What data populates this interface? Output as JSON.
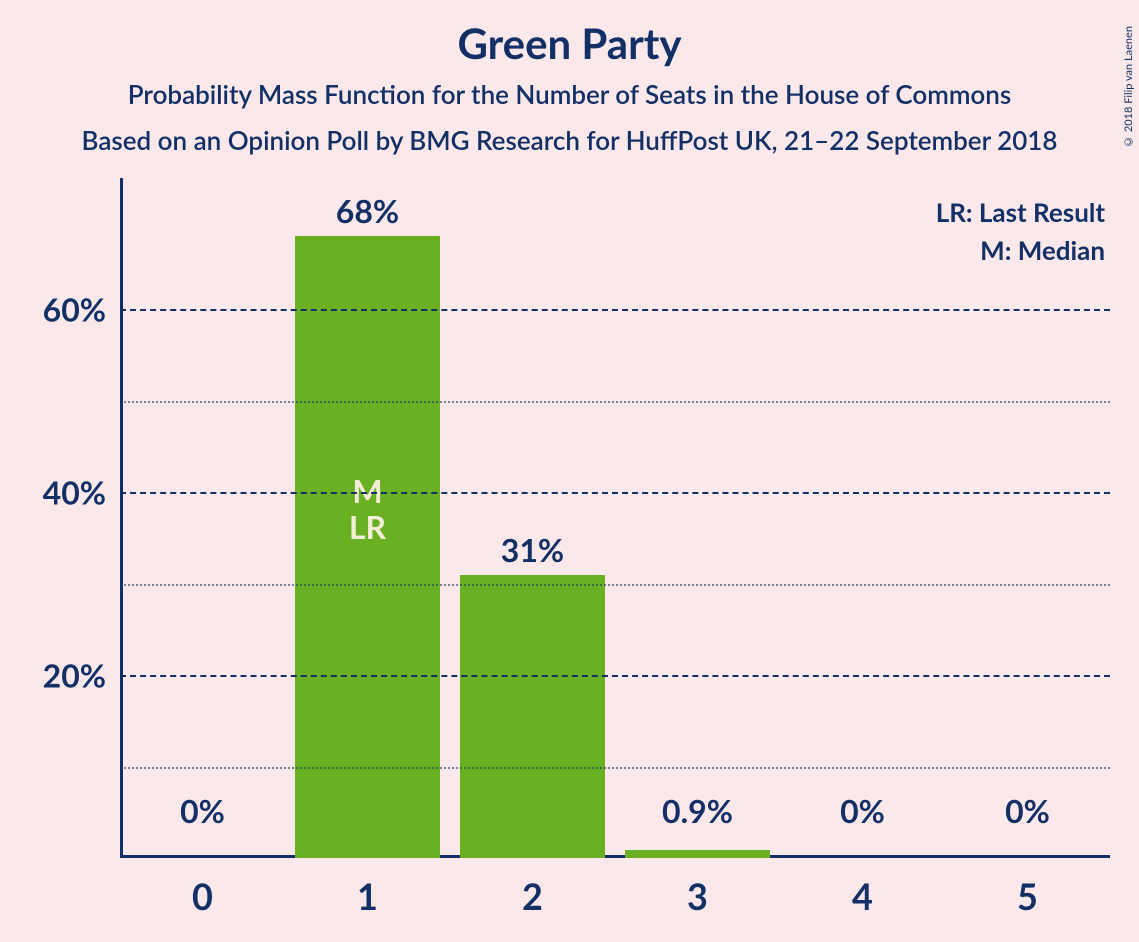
{
  "title": "Green Party",
  "subtitle1": "Probability Mass Function for the Number of Seats in the House of Commons",
  "subtitle2": "Based on an Opinion Poll by BMG Research for HuffPost UK, 21–22 September 2018",
  "legend": {
    "lr": "LR: Last Result",
    "m": "M: Median"
  },
  "copyright": "© 2018 Filip van Laenen",
  "colors": {
    "background": "#fae8ea",
    "text": "#123066",
    "bar": "#6ab023",
    "bar_text": "#f3edd8"
  },
  "chart": {
    "type": "bar",
    "categories": [
      "0",
      "1",
      "2",
      "3",
      "4",
      "5"
    ],
    "values": [
      0,
      68,
      31,
      0.9,
      0,
      0
    ],
    "value_labels": [
      "0%",
      "68%",
      "31%",
      "0.9%",
      "0%",
      "0%"
    ],
    "annotations": {
      "1": [
        "M",
        "LR"
      ]
    },
    "y_major_ticks": [
      20,
      40,
      60
    ],
    "y_major_labels": [
      "20%",
      "40%",
      "60%"
    ],
    "y_minor_ticks": [
      10,
      30,
      50
    ],
    "ymax": 70,
    "bar_color": "#6ab023"
  }
}
